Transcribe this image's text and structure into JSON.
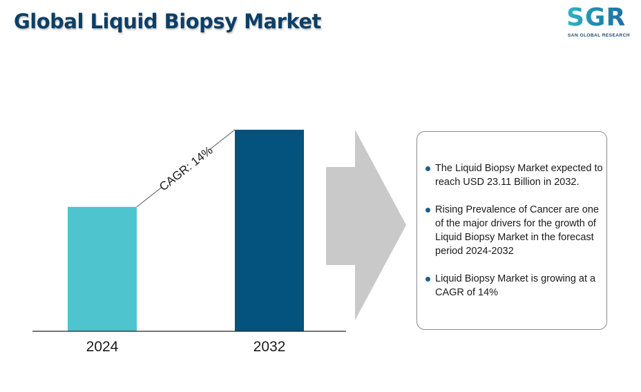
{
  "title": "Global Liquid Biopsy Market",
  "logo": {
    "letters": "SGR",
    "subtitle": "SAN GLOBAL RESEARCH"
  },
  "chart_data": {
    "type": "bar",
    "categories": [
      "2024",
      "2032"
    ],
    "values": [
      1.0,
      1.62
    ],
    "value_note_units": "relative bar heights (no values printed on axis)",
    "bar_colors": [
      "#4ec4cf",
      "#04527e"
    ],
    "annotation": "CAGR: 14%",
    "grid": false,
    "ylim": [
      0,
      1.62
    ]
  },
  "info": {
    "bullets": [
      "The Liquid Biopsy Market expected to reach USD 23.11 Billion in 2032.",
      "Rising Prevalence of Cancer are one of the major drivers for the growth of Liquid Biopsy Market in the forecast period 2024-2032",
      "Liquid Biopsy Market is growing at a CAGR of 14%"
    ]
  },
  "colors": {
    "title": "#0d3f66",
    "arrow": "#c9c9c9",
    "bullet_dot": "#1e5f8a"
  }
}
